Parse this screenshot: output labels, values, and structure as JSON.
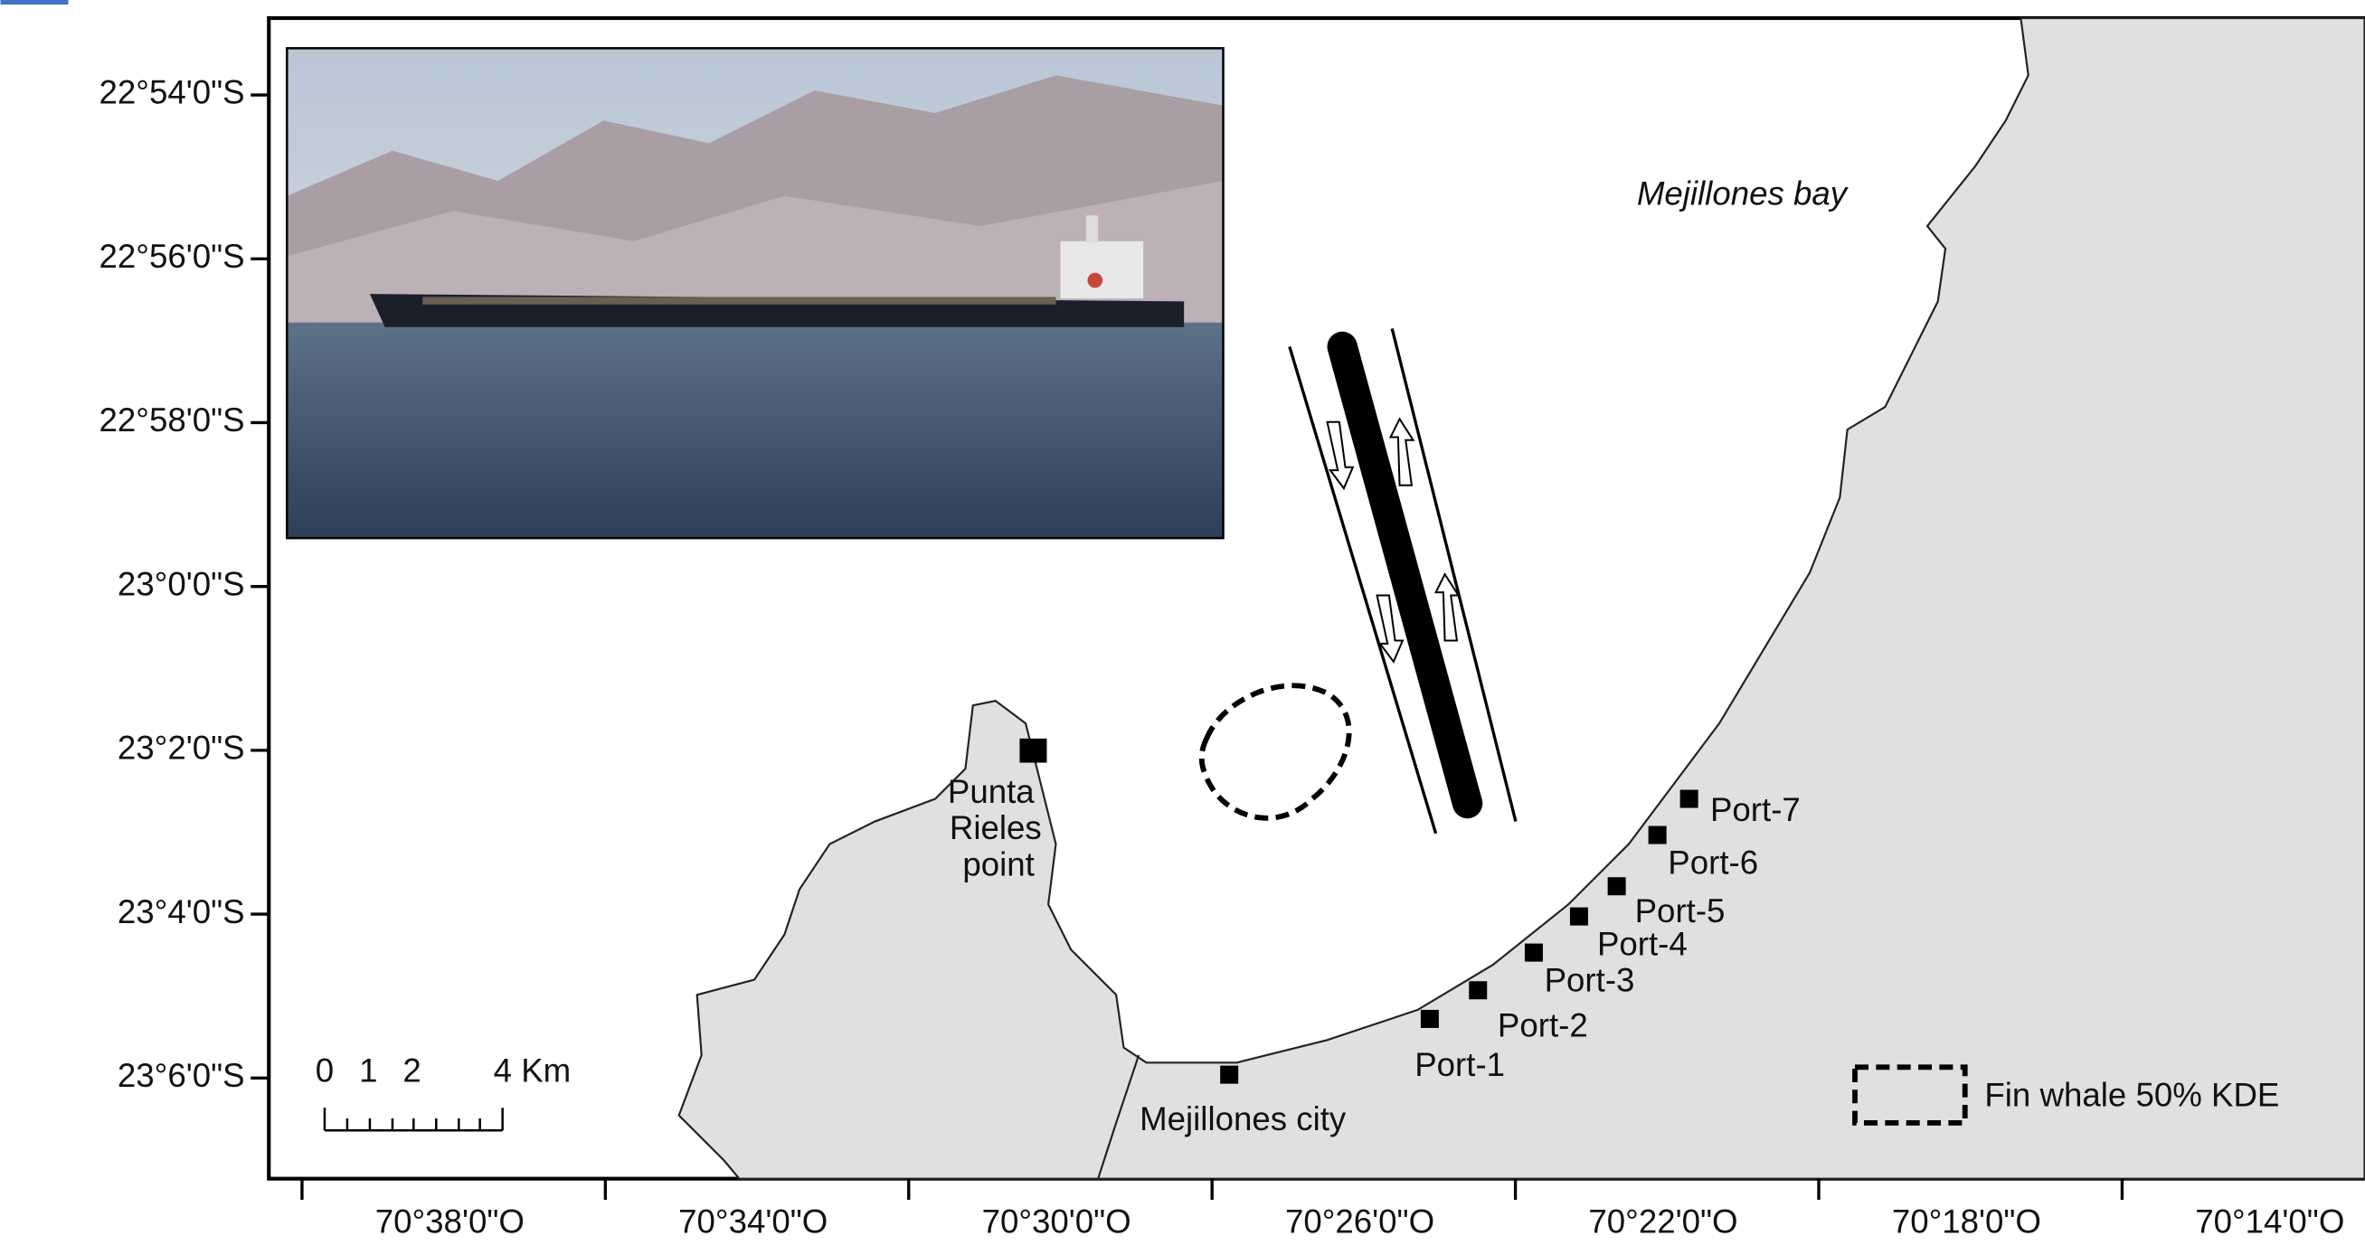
{
  "map": {
    "lat_labels": [
      "22°54'0\"S",
      "22°56'0\"S",
      "22°58'0\"S",
      "23°0'0\"S",
      "23°2'0\"S",
      "23°4'0\"S",
      "23°6'0\"S"
    ],
    "lon_labels": [
      "70°38'0\"O",
      "70°34'0\"O",
      "70°30'0\"O",
      "70°26'0\"O",
      "70°22'0\"O",
      "70°18'0\"O",
      "70°14'0\"O"
    ],
    "places": {
      "bay": "Mejillones bay",
      "city": "Mejillones city",
      "point": [
        "Punta",
        "Rieles",
        "point"
      ]
    },
    "ports": [
      "Port-1",
      "Port-2",
      "Port-3",
      "Port-4",
      "Port-5",
      "Port-6",
      "Port-7"
    ],
    "scale_bar": [
      "0",
      "1",
      "2",
      "4 Km"
    ],
    "legend": "Fin whale 50% KDE"
  }
}
